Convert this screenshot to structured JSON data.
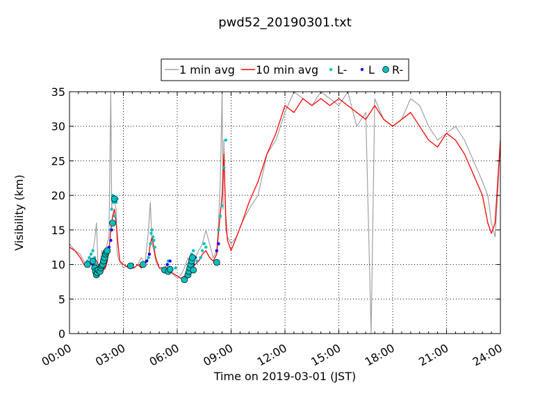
{
  "chart_data": {
    "type": "line",
    "title": "pwd52_20190301.txt",
    "xlabel": "Time on 2019-03-01 (JST)",
    "ylabel": "Visibility (km)",
    "xlim": [
      0,
      24
    ],
    "ylim": [
      0,
      35
    ],
    "x_ticks": [
      {
        "value": 0,
        "label": "00:00"
      },
      {
        "value": 3,
        "label": "03:00"
      },
      {
        "value": 6,
        "label": "06:00"
      },
      {
        "value": 9,
        "label": "09:00"
      },
      {
        "value": 12,
        "label": "12:00"
      },
      {
        "value": 15,
        "label": "15:00"
      },
      {
        "value": 18,
        "label": "18:00"
      },
      {
        "value": 21,
        "label": "21:00"
      },
      {
        "value": 24,
        "label": "24:00"
      }
    ],
    "y_ticks": [
      0,
      5,
      10,
      15,
      20,
      25,
      30,
      35
    ],
    "grid": true,
    "legend_position": "top-center (outside plot)",
    "legend": [
      {
        "label": "1 min avg",
        "kind": "line",
        "color": "#a0a0a0"
      },
      {
        "label": "10 min avg",
        "kind": "line",
        "color": "#ff0000"
      },
      {
        "label": "L-",
        "kind": "dot",
        "color": "#00bfbf"
      },
      {
        "label": "L",
        "kind": "dot",
        "color": "#0000ff"
      },
      {
        "label": "R-",
        "kind": "circle",
        "color": "#00bfbf"
      }
    ],
    "series": [
      {
        "name": "1 min avg",
        "color": "#a0a0a0",
        "x": [
          0,
          0.3,
          0.6,
          0.9,
          1.1,
          1.3,
          1.4,
          1.5,
          1.6,
          1.7,
          1.8,
          1.9,
          2.0,
          2.1,
          2.2,
          2.3,
          2.35,
          2.4,
          2.5,
          2.6,
          2.65,
          2.7,
          2.8,
          3.0,
          3.3,
          3.6,
          3.8,
          4.0,
          4.2,
          4.4,
          4.5,
          4.6,
          4.7,
          4.8,
          4.9,
          5.0,
          5.2,
          5.4,
          5.6,
          5.8,
          6.0,
          6.2,
          6.4,
          6.6,
          6.8,
          7.0,
          7.2,
          7.4,
          7.6,
          7.8,
          8.0,
          8.2,
          8.3,
          8.4,
          8.5,
          8.55,
          8.6,
          8.7,
          8.8,
          9.0,
          9.3,
          9.6,
          10.0,
          10.5,
          11.0,
          11.5,
          12.0,
          12.5,
          13.0,
          13.5,
          14.0,
          14.5,
          15.0,
          15.5,
          16.0,
          16.5,
          16.8,
          17.0,
          17.5,
          18.0,
          18.5,
          19.0,
          19.5,
          20.0,
          20.5,
          21.0,
          21.5,
          22.0,
          22.5,
          23.0,
          23.3,
          23.5,
          23.7,
          23.85,
          24.0
        ],
        "y": [
          13,
          12,
          11.5,
          10,
          11,
          12,
          13.5,
          16,
          9,
          10,
          12,
          11,
          12,
          13,
          14,
          35,
          18,
          20,
          19,
          18,
          12,
          11,
          10.5,
          9.5,
          10,
          9.5,
          10,
          11,
          10,
          15,
          19,
          13,
          12,
          10.5,
          10,
          9.5,
          9,
          10,
          9,
          8.5,
          8,
          8.5,
          9.5,
          11,
          10,
          11,
          12,
          13,
          15,
          13,
          11,
          12,
          16,
          22,
          35,
          18,
          28,
          15,
          14,
          13,
          14,
          16,
          18,
          20,
          26,
          28,
          32,
          35,
          34,
          33,
          35,
          34,
          33,
          35,
          30,
          32,
          0,
          34,
          31,
          30,
          31,
          34,
          33,
          30,
          28,
          29,
          30,
          28,
          25,
          22,
          20,
          16,
          14,
          20,
          28
        ]
      },
      {
        "name": "10 min avg",
        "color": "#ff0000",
        "x": [
          0,
          0.3,
          0.6,
          0.8,
          1.0,
          1.2,
          1.4,
          1.6,
          1.8,
          2.0,
          2.1,
          2.2,
          2.3,
          2.4,
          2.5,
          2.6,
          2.7,
          2.8,
          3.0,
          3.3,
          3.6,
          3.8,
          4.0,
          4.2,
          4.4,
          4.5,
          4.6,
          4.7,
          4.8,
          5.0,
          5.3,
          5.6,
          5.9,
          6.2,
          6.5,
          6.8,
          7.0,
          7.2,
          7.4,
          7.6,
          7.8,
          8.0,
          8.2,
          8.35,
          8.5,
          8.6,
          8.7,
          8.8,
          9.0,
          9.3,
          9.6,
          10.0,
          10.5,
          11.0,
          11.5,
          12.0,
          12.5,
          13.0,
          13.5,
          14.0,
          14.5,
          15.0,
          15.5,
          16.0,
          16.5,
          17.0,
          17.5,
          18.0,
          18.5,
          19.0,
          19.5,
          20.0,
          20.5,
          21.0,
          21.5,
          22.0,
          22.5,
          23.0,
          23.3,
          23.5,
          23.7,
          24.0
        ],
        "y": [
          12.5,
          12,
          11,
          10,
          9.8,
          10,
          11,
          10,
          9,
          9.5,
          10.5,
          12,
          15,
          17,
          18,
          16,
          13,
          10.5,
          10,
          9.5,
          9.5,
          10,
          9.5,
          10,
          11,
          13,
          14,
          12.5,
          11,
          9.5,
          9.5,
          9,
          8.5,
          8,
          8.5,
          9.5,
          10,
          10.5,
          11.5,
          12,
          11,
          10.5,
          11.5,
          16,
          20,
          26,
          17,
          13.5,
          12,
          14,
          16,
          19,
          22,
          26,
          29,
          33,
          32,
          34,
          33,
          34,
          33,
          34,
          33,
          32,
          31,
          33,
          31,
          30,
          31,
          32,
          30,
          28,
          27,
          29,
          28,
          26,
          23,
          20,
          16,
          14.5,
          16,
          28
        ]
      },
      {
        "name": "L-",
        "kind": "dot",
        "color": "#00bfbf",
        "x": [
          1.0,
          1.1,
          1.2,
          1.3,
          1.4,
          1.5,
          1.6,
          2.1,
          2.2,
          2.3,
          2.35,
          2.4,
          2.45,
          2.5,
          2.55,
          2.6,
          2.65,
          3.5,
          4.4,
          4.5,
          4.55,
          4.6,
          4.65,
          4.7,
          4.75,
          5.5,
          5.9,
          6.6,
          6.7,
          6.8,
          6.9,
          7.0,
          7.1,
          7.3,
          7.4,
          7.5,
          7.6,
          8.3,
          8.4,
          8.5,
          8.6,
          8.7
        ],
        "y": [
          10.5,
          11,
          11.5,
          12,
          11,
          10,
          9.5,
          11,
          12.5,
          15,
          18,
          20,
          19,
          17,
          16,
          19,
          19.5,
          10,
          11,
          13,
          14.5,
          15,
          14,
          13.5,
          12.5,
          10.5,
          9.5,
          9.5,
          10.5,
          11.5,
          12,
          11,
          10.5,
          11,
          12,
          13,
          12.5,
          15,
          17,
          18.5,
          24,
          28
        ]
      },
      {
        "name": "L",
        "kind": "dot",
        "color": "#0000ff",
        "x": [
          1.3,
          1.5,
          1.8,
          2.0,
          2.2,
          2.3,
          2.35,
          2.45,
          4.3,
          4.45,
          5.45,
          5.6,
          6.35,
          6.5,
          6.9,
          7.0,
          8.2,
          8.3
        ],
        "y": [
          10,
          9,
          10.5,
          11,
          12.5,
          13.5,
          15,
          16,
          10.5,
          11.5,
          10,
          10.5,
          8,
          8.5,
          10,
          11,
          12,
          13
        ]
      },
      {
        "name": "R-",
        "kind": "circle",
        "color": "#00bfbf",
        "x": [
          1.0,
          1.3,
          1.4,
          1.45,
          1.5,
          1.55,
          1.6,
          1.7,
          1.75,
          1.8,
          1.85,
          1.9,
          1.95,
          2.0,
          2.05,
          2.1,
          2.4,
          2.5,
          3.4,
          4.1,
          5.3,
          5.5,
          5.6,
          6.4,
          6.6,
          6.65,
          6.7,
          6.75,
          6.8,
          6.85,
          6.9,
          8.2
        ],
        "y": [
          10,
          10.5,
          9.5,
          9,
          8.5,
          8.8,
          9.2,
          9,
          9.5,
          9.8,
          10,
          10.5,
          11,
          11.5,
          11.8,
          12,
          16,
          19.5,
          9.8,
          10,
          9.2,
          9,
          9.3,
          7.8,
          8.5,
          9,
          9.5,
          10,
          10.5,
          11,
          9.2,
          10.3
        ]
      }
    ]
  }
}
